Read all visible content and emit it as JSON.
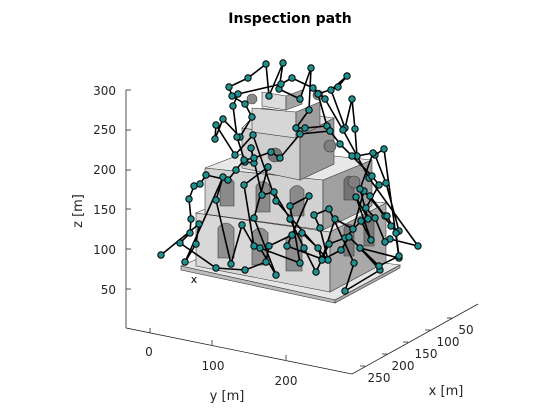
{
  "chart_data": {
    "type": "scatter",
    "title": "Inspection path",
    "xlabel": "x [m]",
    "ylabel": "y [m]",
    "zlabel": "z [m]",
    "projection": "3d",
    "grid": false,
    "x_ticks": [
      "50",
      "100",
      "150",
      "200",
      "250"
    ],
    "y_ticks": [
      "0",
      "100",
      "200"
    ],
    "z_ticks": [
      "50",
      "100",
      "150",
      "200",
      "250",
      "300"
    ],
    "start_marker": "x",
    "series": [
      {
        "marker_color": "#1f8f8f",
        "path_color": "#000000",
        "points_screen_ref": true
      }
    ]
  },
  "path": [
    [
      161,
      255
    ],
    [
      199,
      224
    ],
    [
      196,
      244
    ],
    [
      185,
      262
    ],
    [
      223,
      177
    ],
    [
      216,
      200
    ],
    [
      231,
      264
    ],
    [
      242,
      225
    ],
    [
      254,
      246
    ],
    [
      244,
      185
    ],
    [
      268,
      167
    ],
    [
      254,
      218
    ],
    [
      276,
      275
    ],
    [
      260,
      248
    ],
    [
      300,
      263
    ],
    [
      290,
      206
    ],
    [
      309,
      196
    ],
    [
      287,
      246
    ],
    [
      322,
      259
    ],
    [
      335,
      219
    ],
    [
      353,
      229
    ],
    [
      364,
      191
    ],
    [
      385,
      216
    ],
    [
      370,
      196
    ],
    [
      391,
      226
    ],
    [
      399,
      231
    ],
    [
      386,
      183
    ],
    [
      375,
      155
    ],
    [
      384,
      149
    ],
    [
      399,
      258
    ],
    [
      360,
      248
    ],
    [
      380,
      270
    ],
    [
      345,
      291
    ],
    [
      354,
      263
    ],
    [
      329,
      209
    ],
    [
      314,
      215
    ],
    [
      320,
      228
    ],
    [
      328,
      260
    ],
    [
      276,
      201
    ],
    [
      253,
      135
    ],
    [
      235,
      155
    ],
    [
      216,
      125
    ],
    [
      215,
      139
    ],
    [
      223,
      119
    ],
    [
      240,
      137
    ],
    [
      252,
      117
    ],
    [
      245,
      104
    ],
    [
      232,
      96
    ],
    [
      229,
      87
    ],
    [
      248,
      78
    ],
    [
      266,
      64
    ],
    [
      269,
      96
    ],
    [
      283,
      63
    ],
    [
      279,
      89
    ],
    [
      300,
      99
    ],
    [
      311,
      68
    ],
    [
      309,
      110
    ],
    [
      296,
      128
    ],
    [
      305,
      128
    ],
    [
      327,
      126
    ],
    [
      318,
      94
    ],
    [
      338,
      87
    ],
    [
      347,
      76
    ],
    [
      331,
      90
    ],
    [
      345,
      128
    ],
    [
      352,
      99
    ],
    [
      355,
      129
    ],
    [
      357,
      156
    ],
    [
      373,
      153
    ],
    [
      360,
      189
    ],
    [
      368,
      219
    ],
    [
      356,
      197
    ],
    [
      371,
      240
    ],
    [
      361,
      221
    ],
    [
      345,
      238
    ],
    [
      329,
      244
    ],
    [
      316,
      272
    ],
    [
      304,
      248
    ],
    [
      290,
      219
    ],
    [
      274,
      192
    ],
    [
      262,
      195
    ],
    [
      251,
      148
    ],
    [
      254,
      163
    ],
    [
      245,
      162
    ],
    [
      237,
      137
    ],
    [
      233,
      106
    ],
    [
      238,
      94
    ],
    [
      281,
      84
    ],
    [
      292,
      78
    ],
    [
      313,
      88
    ],
    [
      325,
      99
    ],
    [
      343,
      130
    ],
    [
      369,
      178
    ],
    [
      418,
      246
    ],
    [
      390,
      239
    ],
    [
      385,
      242
    ],
    [
      375,
      218
    ],
    [
      366,
      208
    ],
    [
      379,
      185
    ],
    [
      372,
      176
    ],
    [
      352,
      156
    ],
    [
      340,
      144
    ],
    [
      330,
      131
    ],
    [
      300,
      134
    ],
    [
      280,
      158
    ],
    [
      271,
      152
    ],
    [
      254,
      158
    ],
    [
      244,
      160
    ],
    [
      236,
      170
    ],
    [
      228,
      180
    ],
    [
      206,
      175
    ],
    [
      200,
      184
    ],
    [
      194,
      186
    ],
    [
      189,
      199
    ],
    [
      191,
      219
    ],
    [
      190,
      233
    ],
    [
      180,
      243
    ],
    [
      216,
      268
    ],
    [
      245,
      270
    ],
    [
      266,
      262
    ],
    [
      269,
      246
    ],
    [
      292,
      235
    ],
    [
      302,
      233
    ],
    [
      318,
      248
    ],
    [
      322,
      260
    ],
    [
      341,
      250
    ],
    [
      349,
      237
    ],
    [
      379,
      266
    ],
    [
      399,
      256
    ],
    [
      396,
      233
    ],
    [
      387,
      216
    ]
  ]
}
